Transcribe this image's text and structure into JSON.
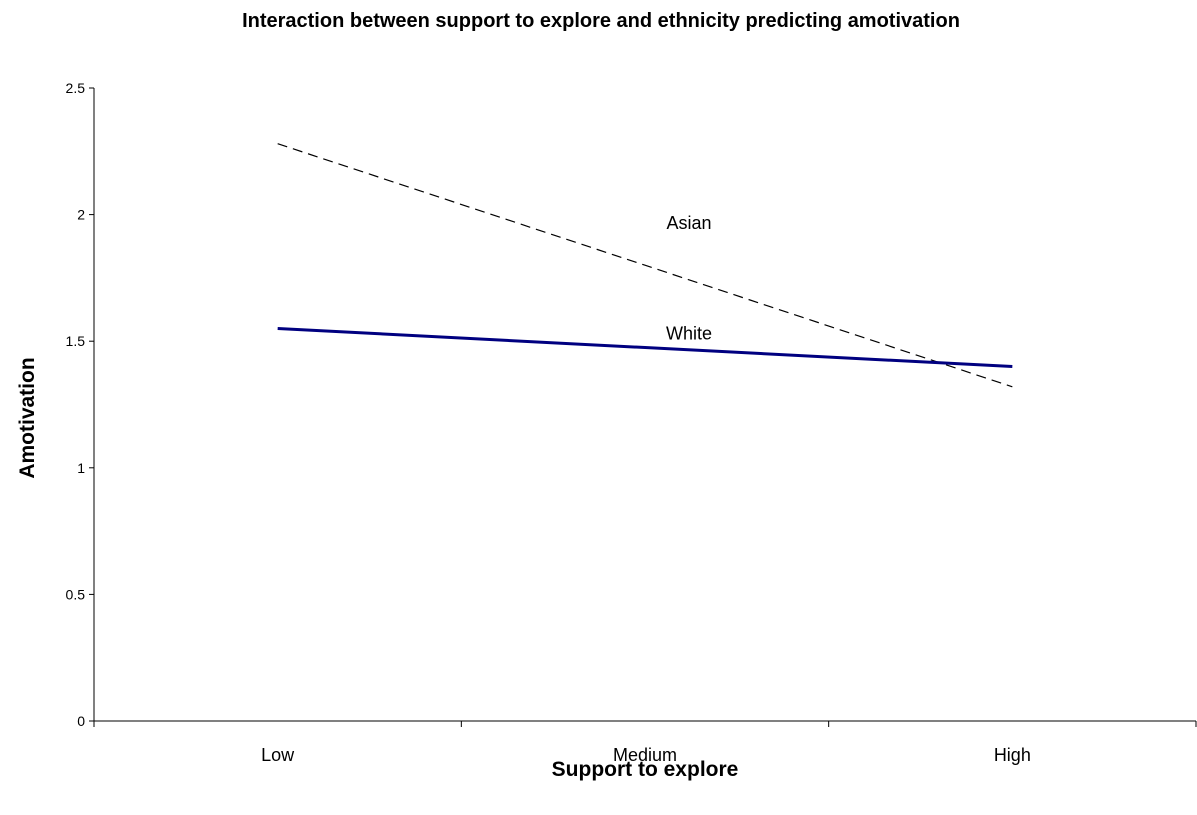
{
  "chart_data": {
    "type": "line",
    "title": "Interaction between support to explore and ethnicity predicting amotivation",
    "xlabel": "Support to explore",
    "ylabel": "Amotivation",
    "categories": [
      "Low",
      "Medium",
      "High"
    ],
    "ylim": [
      0,
      2.5
    ],
    "yticks": [
      "0",
      "0.5",
      "1",
      "1.5",
      "2",
      "2.5"
    ],
    "series": [
      {
        "name": "Asian",
        "values": [
          2.28,
          1.8,
          1.32
        ],
        "color": "#000000",
        "dash": "dashed"
      },
      {
        "name": "White",
        "values": [
          1.55,
          1.475,
          1.4
        ],
        "color": "#000080",
        "dash": "solid"
      }
    ],
    "grid": false,
    "legend": "inline labels"
  }
}
